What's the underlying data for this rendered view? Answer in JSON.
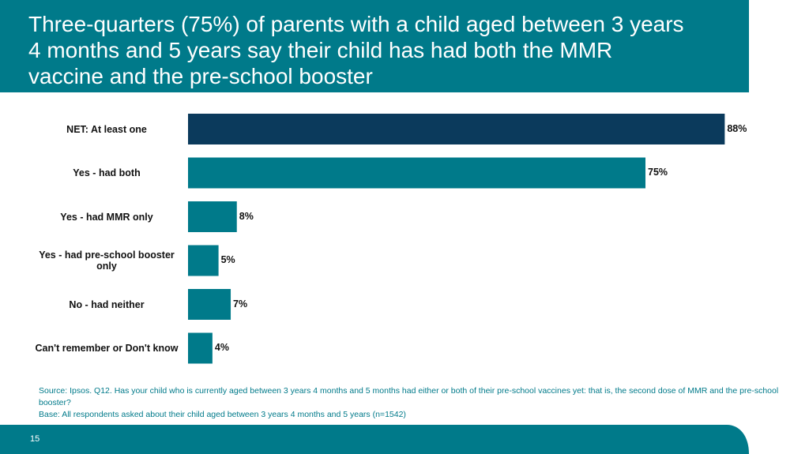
{
  "header": {
    "title": "Three-quarters (75%) of parents with a child aged between 3 years 4 months and 5 years say their child has had both the MMR vaccine and the pre-school booster"
  },
  "chart_data": {
    "type": "bar",
    "orientation": "horizontal",
    "categories": [
      "NET: At least one",
      "Yes - had both",
      "Yes - had MMR only",
      "Yes - had pre-school booster only",
      "No - had neither",
      "Can't remember or Don't know"
    ],
    "values": [
      88,
      75,
      8,
      5,
      7,
      4
    ],
    "value_labels": [
      "88%",
      "75%",
      "8%",
      "5%",
      "7%",
      "4%"
    ],
    "xlim": [
      0,
      100
    ],
    "grid": false,
    "colors": [
      "#0B3A5C",
      "#007A8A",
      "#007A8A",
      "#007A8A",
      "#007A8A",
      "#007A8A"
    ]
  },
  "footer": {
    "source": "Source: Ipsos. Q12. Has your child who is currently aged between 3 years 4 months and 5 months had either or both of their pre-school vaccines yet: that is, the second dose of MMR and the pre-school booster?",
    "base": "Base: All respondents asked about their child aged between 3 years 4 months and 5 years (n=1542)",
    "page_number": "15"
  },
  "colors": {
    "accent": "#007A8A",
    "dark": "#0B3A5C"
  }
}
